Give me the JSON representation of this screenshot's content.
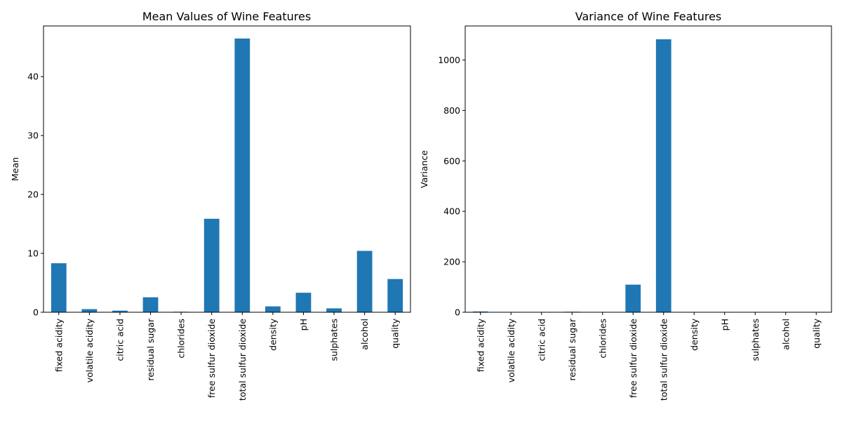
{
  "chart_data": [
    {
      "type": "bar",
      "title": "Mean Values of Wine Features",
      "xlabel": "",
      "ylabel": "Mean",
      "ylim": [
        0,
        48.6
      ],
      "yticks": [
        0,
        10,
        20,
        30,
        40
      ],
      "grid": false,
      "color": "#1f77b4",
      "categories": [
        "fixed acidity",
        "volatile acidity",
        "citric acid",
        "residual sugar",
        "chlorides",
        "free sulfur dioxide",
        "total sulfur dioxide",
        "density",
        "pH",
        "sulphates",
        "alcohol",
        "quality"
      ],
      "values": [
        8.32,
        0.53,
        0.27,
        2.54,
        0.087,
        15.87,
        46.47,
        0.997,
        3.31,
        0.66,
        10.42,
        5.64
      ]
    },
    {
      "type": "bar",
      "title": "Variance of Wine Features",
      "xlabel": "",
      "ylabel": "Variance",
      "ylim": [
        0,
        1135
      ],
      "yticks": [
        0,
        200,
        400,
        600,
        800,
        1000
      ],
      "grid": false,
      "color": "#1f77b4",
      "categories": [
        "fixed acidity",
        "volatile acidity",
        "citric acid",
        "residual sugar",
        "chlorides",
        "free sulfur dioxide",
        "total sulfur dioxide",
        "density",
        "pH",
        "sulphates",
        "alcohol",
        "quality"
      ],
      "values": [
        3.03,
        0.032,
        0.038,
        1.99,
        0.0022,
        109.4,
        1082.1,
        4e-06,
        0.024,
        0.029,
        1.14,
        0.65
      ]
    }
  ]
}
